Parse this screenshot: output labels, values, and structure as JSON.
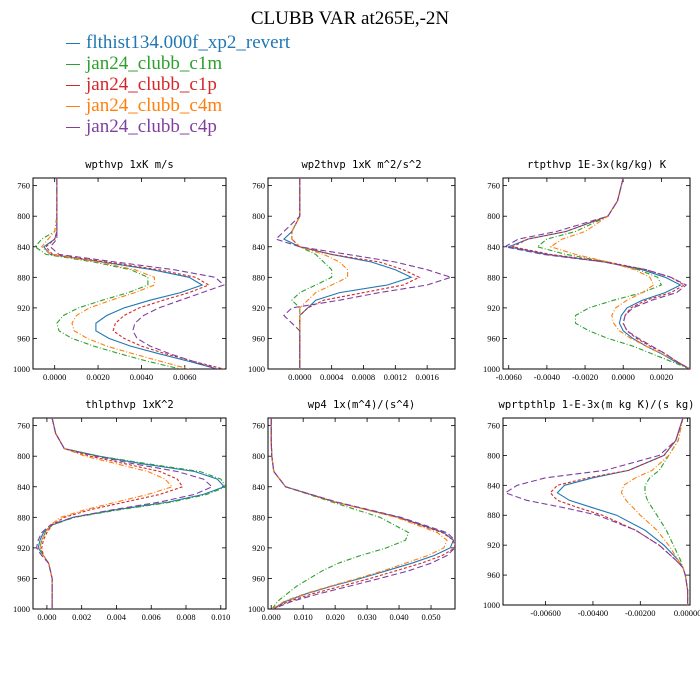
{
  "title": "CLUBB VAR at265E,-2N",
  "legend": [
    {
      "label": "flthist134.000f_xp2_revert",
      "color": "#1f77b4"
    },
    {
      "label": "jan24_clubb_c1m",
      "color": "#2ca02c"
    },
    {
      "label": "jan24_clubb_c1p",
      "color": "#d62728"
    },
    {
      "label": "jan24_clubb_c4m",
      "color": "#ff7f0e"
    },
    {
      "label": "jan24_clubb_c4p",
      "color": "#7f3fa0"
    }
  ],
  "chart_data": [
    {
      "type": "line",
      "title": "wpthvp  1xK m/s",
      "xlim": [
        -0.001,
        0.0079
      ],
      "ylim": [
        1000,
        750
      ],
      "xticks": [
        0.0,
        0.002,
        0.004,
        0.006
      ],
      "xtick_labels": [
        "0.0000",
        "0.0020",
        "0.0040",
        "0.0060"
      ],
      "yticks": [
        760,
        800,
        840,
        880,
        920,
        960,
        1000
      ],
      "y": [
        750,
        780,
        800,
        820,
        830,
        840,
        850,
        860,
        870,
        880,
        890,
        900,
        910,
        920,
        930,
        940,
        950,
        960,
        970,
        980,
        990,
        1000
      ],
      "series": [
        {
          "values": [
            0.0001,
            0.0001,
            0.0001,
            0.0001,
            0.0,
            -0.0005,
            -0.0002,
            0.0022,
            0.0045,
            0.0062,
            0.0068,
            0.0058,
            0.0044,
            0.0032,
            0.0024,
            0.0019,
            0.0019,
            0.0025,
            0.0035,
            0.0048,
            0.0062,
            0.0075
          ]
        },
        {
          "values": [
            0.0001,
            0.0001,
            0.0001,
            0.0,
            -0.0006,
            -0.0009,
            -0.0004,
            0.0018,
            0.0035,
            0.0043,
            0.0043,
            0.0034,
            0.0022,
            0.0011,
            0.0004,
            0.0001,
            0.0002,
            0.0008,
            0.0018,
            0.003,
            0.0043,
            0.0058
          ]
        },
        {
          "values": [
            0.0001,
            0.0001,
            0.0001,
            0.0001,
            0.0,
            -0.0004,
            -0.0001,
            0.0024,
            0.0048,
            0.0065,
            0.0071,
            0.0062,
            0.005,
            0.0039,
            0.0032,
            0.0028,
            0.0027,
            0.0032,
            0.004,
            0.0051,
            0.0064,
            0.0078
          ]
        },
        {
          "values": [
            0.0001,
            0.0001,
            0.0001,
            0.0,
            -0.0003,
            -0.0006,
            -0.0002,
            0.002,
            0.0037,
            0.0046,
            0.0046,
            0.0037,
            0.0026,
            0.0016,
            0.001,
            0.0008,
            0.0009,
            0.0015,
            0.0024,
            0.0036,
            0.0049,
            0.0062
          ]
        },
        {
          "values": [
            0.0001,
            0.0001,
            0.0001,
            0.0001,
            0.0001,
            -0.0002,
            0.0002,
            0.0028,
            0.0055,
            0.0074,
            0.0078,
            0.0068,
            0.0058,
            0.0048,
            0.0041,
            0.0037,
            0.0036,
            0.0038,
            0.0044,
            0.0053,
            0.0064,
            0.0075
          ]
        }
      ]
    },
    {
      "type": "line",
      "title": "wp2thvp  1xK m^2/s^2",
      "xlim": [
        -0.0004,
        0.00195
      ],
      "ylim": [
        1000,
        750
      ],
      "xticks": [
        0.0,
        0.0004,
        0.0008,
        0.0012,
        0.0016
      ],
      "xtick_labels": [
        "0.0000",
        "0.0004",
        "0.0008",
        "0.0012",
        "0.0016"
      ],
      "yticks": [
        760,
        800,
        840,
        880,
        920,
        960,
        1000
      ],
      "y": [
        750,
        780,
        800,
        820,
        830,
        840,
        850,
        860,
        870,
        880,
        890,
        900,
        910,
        920,
        930,
        940,
        950,
        960,
        970,
        980,
        990,
        1000
      ],
      "series": [
        {
          "values": [
            0.0,
            0.0,
            0.0,
            -0.0001,
            -0.0002,
            0.0,
            0.0004,
            0.0009,
            0.0012,
            0.0014,
            0.0011,
            0.0005,
            0.0002,
            0.0001,
            0.0,
            0.0,
            0.0,
            0.0,
            0.0,
            0.0,
            0.0,
            0.0
          ]
        },
        {
          "values": [
            0.0,
            0.0,
            0.0,
            -0.0001,
            -0.0001,
            0.0,
            0.0002,
            0.0003,
            0.0004,
            0.0004,
            0.0002,
            0.0,
            -0.0001,
            0.0,
            0.0,
            0.0,
            0.0,
            0.0,
            0.0,
            0.0,
            0.0,
            0.0
          ]
        },
        {
          "values": [
            0.0,
            0.0,
            0.0,
            -0.0001,
            -0.0001,
            0.0,
            0.0004,
            0.001,
            0.0013,
            0.0015,
            0.0013,
            0.0008,
            0.0003,
            0.0001,
            0.0,
            0.0,
            0.0,
            0.0,
            0.0,
            0.0,
            0.0,
            0.0
          ]
        },
        {
          "values": [
            0.0,
            0.0,
            0.0,
            -0.0001,
            -0.0001,
            0.0,
            0.0003,
            0.0005,
            0.0006,
            0.0006,
            0.0004,
            0.0002,
            0.0001,
            0.0,
            0.0,
            0.0,
            0.0,
            0.0,
            0.0,
            0.0,
            0.0,
            0.0
          ]
        },
        {
          "values": [
            0.0,
            0.0,
            0.0,
            -0.0002,
            -0.0003,
            0.0,
            0.0006,
            0.0012,
            0.0016,
            0.0019,
            0.0016,
            0.001,
            0.0005,
            -0.0001,
            -0.0002,
            -0.0001,
            0.0,
            0.0,
            0.0,
            0.0,
            0.0,
            0.0
          ]
        }
      ]
    },
    {
      "type": "line",
      "title": "rtpthvp  1E-3x(kg/kg) K",
      "xlim": [
        -0.0063,
        0.0035
      ],
      "ylim": [
        1000,
        750
      ],
      "xticks": [
        -0.006,
        -0.004,
        -0.002,
        0.0,
        0.002
      ],
      "xtick_labels": [
        "-0.0060",
        "-0.0040",
        "-0.0020",
        "0.0000",
        "0.0020"
      ],
      "yticks": [
        760,
        800,
        840,
        880,
        920,
        960,
        1000
      ],
      "y": [
        750,
        780,
        800,
        820,
        830,
        840,
        850,
        860,
        870,
        880,
        890,
        900,
        910,
        920,
        930,
        940,
        950,
        960,
        970,
        980,
        990,
        1000
      ],
      "series": [
        {
          "values": [
            0.0,
            -0.0003,
            -0.0008,
            -0.003,
            -0.005,
            -0.006,
            -0.004,
            -0.001,
            0.001,
            0.0022,
            0.003,
            0.0022,
            0.001,
            0.0002,
            -0.0001,
            -0.0002,
            0.0,
            0.0005,
            0.0012,
            0.002,
            0.0027,
            0.0035
          ]
        },
        {
          "values": [
            0.0,
            -0.0003,
            -0.0008,
            -0.0025,
            -0.004,
            -0.0045,
            -0.003,
            -0.0008,
            0.0008,
            0.0018,
            0.002,
            0.001,
            -0.0005,
            -0.0018,
            -0.0025,
            -0.0025,
            -0.0018,
            -0.0008,
            0.0005,
            0.0015,
            0.0025,
            0.0035
          ]
        },
        {
          "values": [
            0.0,
            -0.0003,
            -0.0008,
            -0.003,
            -0.005,
            -0.0058,
            -0.0038,
            -0.0008,
            0.0012,
            0.0025,
            0.0032,
            0.0025,
            0.0012,
            0.0004,
            0.0001,
            0.0,
            0.0002,
            0.0007,
            0.0014,
            0.0022,
            0.0028,
            0.0035
          ]
        },
        {
          "values": [
            0.0,
            -0.0003,
            -0.0008,
            -0.002,
            -0.0032,
            -0.0038,
            -0.0025,
            -0.0008,
            0.0006,
            0.0014,
            0.0016,
            0.001,
            0.0002,
            -0.0004,
            -0.0006,
            -0.0005,
            -0.0002,
            0.0004,
            0.0012,
            0.002,
            0.0028,
            0.0035
          ]
        },
        {
          "values": [
            0.0,
            -0.0003,
            -0.0008,
            -0.0035,
            -0.0055,
            -0.0062,
            -0.0042,
            -0.001,
            0.0012,
            0.0025,
            0.0033,
            0.0028,
            0.0015,
            0.0005,
            0.0001,
            0.0,
            0.0002,
            0.0008,
            0.0015,
            0.0022,
            0.0028,
            0.0035
          ]
        }
      ]
    },
    {
      "type": "line",
      "title": "thlpthvp  1xK^2",
      "xlim": [
        -0.0008,
        0.0103
      ],
      "ylim": [
        1000,
        750
      ],
      "xticks": [
        0.0,
        0.002,
        0.004,
        0.006,
        0.008,
        0.01
      ],
      "xtick_labels": [
        "0.000",
        "0.002",
        "0.004",
        "0.006",
        "0.008",
        "0.010"
      ],
      "yticks": [
        760,
        800,
        840,
        880,
        920,
        960,
        1000
      ],
      "y": [
        750,
        770,
        790,
        800,
        810,
        820,
        830,
        840,
        850,
        860,
        870,
        880,
        890,
        900,
        910,
        920,
        930,
        940,
        950,
        960,
        970,
        980,
        990,
        1000
      ],
      "series": [
        {
          "values": [
            0.0003,
            0.0005,
            0.001,
            0.003,
            0.0055,
            0.0085,
            0.0098,
            0.0102,
            0.009,
            0.007,
            0.004,
            0.0015,
            0.0003,
            -0.0002,
            -0.0004,
            -0.0005,
            -0.0002,
            0.0001,
            0.0002,
            0.0003,
            0.0003,
            0.0003,
            0.0003,
            0.0003
          ]
        },
        {
          "values": [
            0.0003,
            0.0005,
            0.001,
            0.003,
            0.0058,
            0.0088,
            0.01,
            0.0103,
            0.0092,
            0.0072,
            0.0042,
            0.0016,
            0.0003,
            -0.0001,
            -0.0003,
            -0.0004,
            -0.0002,
            0.0001,
            0.0002,
            0.0003,
            0.0003,
            0.0003,
            0.0003,
            0.0003
          ]
        },
        {
          "values": [
            0.0003,
            0.0005,
            0.001,
            0.0025,
            0.0045,
            0.0065,
            0.0075,
            0.0078,
            0.0065,
            0.0045,
            0.0025,
            0.001,
            0.0003,
            0.0,
            -0.0002,
            -0.0003,
            -0.0002,
            0.0001,
            0.0002,
            0.0003,
            0.0003,
            0.0003,
            0.0003,
            0.0003
          ]
        },
        {
          "values": [
            0.0003,
            0.0005,
            0.001,
            0.0022,
            0.004,
            0.0058,
            0.0068,
            0.0072,
            0.0058,
            0.004,
            0.0022,
            0.0008,
            0.0002,
            -0.0001,
            -0.0003,
            -0.0004,
            -0.0002,
            0.0001,
            0.0002,
            0.0003,
            0.0003,
            0.0003,
            0.0003,
            0.0003
          ]
        },
        {
          "values": [
            0.0003,
            0.0005,
            0.001,
            0.0028,
            0.005,
            0.0075,
            0.009,
            0.0095,
            0.0085,
            0.0065,
            0.0038,
            0.0015,
            0.0002,
            -0.0003,
            -0.0005,
            -0.0006,
            -0.0003,
            0.0001,
            0.0002,
            0.0003,
            0.0003,
            0.0003,
            0.0003,
            0.0003
          ]
        }
      ]
    },
    {
      "type": "line",
      "title": "wp4  1x(m^4)/(s^4)",
      "xlim": [
        -0.001,
        0.0575
      ],
      "ylim": [
        1000,
        750
      ],
      "xticks": [
        0.0,
        0.01,
        0.02,
        0.03,
        0.04,
        0.05
      ],
      "xtick_labels": [
        "0.000",
        "0.010",
        "0.020",
        "0.030",
        "0.040",
        "0.050"
      ],
      "yticks": [
        760,
        800,
        840,
        880,
        920,
        960,
        1000
      ],
      "y": [
        750,
        780,
        800,
        820,
        840,
        860,
        880,
        900,
        910,
        920,
        930,
        940,
        950,
        960,
        970,
        980,
        990,
        1000
      ],
      "series": [
        {
          "values": [
            0.0,
            0.0,
            0.0002,
            0.0008,
            0.0045,
            0.02,
            0.04,
            0.054,
            0.057,
            0.056,
            0.051,
            0.044,
            0.036,
            0.028,
            0.019,
            0.011,
            0.0045,
            0.0005
          ]
        },
        {
          "values": [
            0.0,
            0.0,
            0.0002,
            0.0008,
            0.0045,
            0.019,
            0.034,
            0.043,
            0.042,
            0.036,
            0.028,
            0.021,
            0.016,
            0.012,
            0.008,
            0.005,
            0.002,
            0.0003
          ]
        },
        {
          "values": [
            0.0,
            0.0,
            0.0002,
            0.0008,
            0.0045,
            0.02,
            0.0395,
            0.0535,
            0.057,
            0.0575,
            0.0535,
            0.047,
            0.039,
            0.031,
            0.022,
            0.013,
            0.0055,
            0.0005
          ]
        },
        {
          "values": [
            0.0,
            0.0,
            0.0002,
            0.0008,
            0.0045,
            0.02,
            0.039,
            0.052,
            0.055,
            0.054,
            0.049,
            0.042,
            0.035,
            0.027,
            0.0185,
            0.0105,
            0.004,
            0.0004
          ]
        },
        {
          "values": [
            0.0,
            0.0,
            0.0002,
            0.0008,
            0.0045,
            0.0205,
            0.0405,
            0.055,
            0.0575,
            0.0575,
            0.055,
            0.05,
            0.043,
            0.034,
            0.0245,
            0.015,
            0.0065,
            0.0006
          ]
        }
      ]
    },
    {
      "type": "line",
      "title": "wprtpthlp  1-E-3x(m kg K)/(s kg)",
      "xlim": [
        -0.0078,
        0.0001
      ],
      "ylim": [
        1000,
        750
      ],
      "xticks": [
        -0.006,
        -0.004,
        -0.002,
        0.0
      ],
      "xtick_labels": [
        "-0.00600",
        "-0.00400",
        "-0.00200",
        "0.00000"
      ],
      "yticks": [
        760,
        800,
        840,
        880,
        920,
        960,
        1000
      ],
      "y": [
        750,
        780,
        800,
        820,
        830,
        840,
        850,
        860,
        870,
        880,
        900,
        920,
        940,
        950,
        960,
        980,
        1000
      ],
      "series": [
        {
          "values": [
            -0.0002,
            -0.0005,
            -0.001,
            -0.0025,
            -0.004,
            -0.0052,
            -0.0055,
            -0.005,
            -0.004,
            -0.003,
            -0.0018,
            -0.001,
            -0.0004,
            -0.0002,
            -0.0001,
            0.0,
            0.0
          ]
        },
        {
          "values": [
            -0.0002,
            -0.0004,
            -0.0008,
            -0.0012,
            -0.0016,
            -0.0018,
            -0.0018,
            -0.0017,
            -0.0015,
            -0.0013,
            -0.0009,
            -0.0006,
            -0.0003,
            -0.0002,
            -0.0001,
            0.0,
            0.0
          ]
        },
        {
          "values": [
            -0.0002,
            -0.0005,
            -0.001,
            -0.0025,
            -0.0042,
            -0.0055,
            -0.0058,
            -0.0055,
            -0.0046,
            -0.0036,
            -0.0022,
            -0.0012,
            -0.0005,
            -0.0002,
            -0.0001,
            0.0,
            0.0
          ]
        },
        {
          "values": [
            -0.0002,
            -0.0004,
            -0.0008,
            -0.0015,
            -0.0022,
            -0.0027,
            -0.0028,
            -0.0026,
            -0.0023,
            -0.002,
            -0.0013,
            -0.0008,
            -0.0004,
            -0.0002,
            -0.0001,
            0.0,
            0.0
          ]
        },
        {
          "values": [
            -0.0002,
            -0.0005,
            -0.0012,
            -0.0035,
            -0.006,
            -0.0072,
            -0.0077,
            -0.0068,
            -0.0052,
            -0.0038,
            -0.0022,
            -0.0012,
            -0.0005,
            -0.0002,
            -0.0001,
            0.0,
            0.0
          ]
        }
      ]
    }
  ]
}
